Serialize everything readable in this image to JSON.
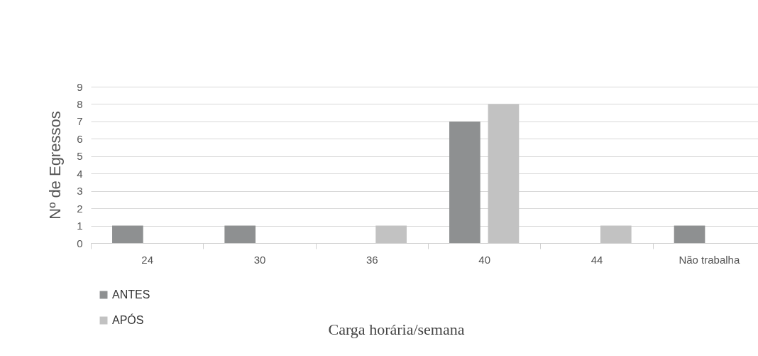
{
  "chart_data": {
    "type": "bar",
    "xlabel": "Carga horária/semana",
    "ylabel": "Nº de Egressos",
    "categories": [
      "24",
      "30",
      "36",
      "40",
      "44",
      "Não trabalha"
    ],
    "series": [
      {
        "name": "ANTES",
        "color": "#8e9091",
        "values": [
          1,
          1,
          0,
          7,
          0,
          1
        ]
      },
      {
        "name": "APÓS",
        "color": "#c2c2c2",
        "values": [
          0,
          0,
          1,
          8,
          1,
          0
        ]
      }
    ],
    "ylim": [
      0,
      9
    ],
    "yticks": [
      0,
      1,
      2,
      3,
      4,
      5,
      6,
      7,
      8,
      9
    ],
    "grid": "y",
    "legend": "bottom left"
  }
}
